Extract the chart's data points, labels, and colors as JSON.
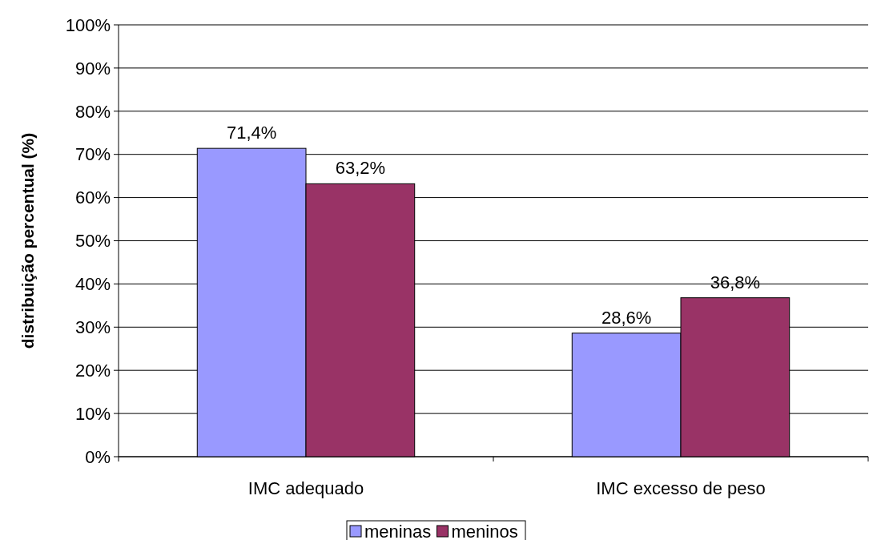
{
  "chart_data": {
    "type": "bar",
    "ylabel": "distribuição percentual (%)",
    "categories": [
      "IMC adequado",
      "IMC excesso de peso"
    ],
    "series": [
      {
        "name": "meninas",
        "color": "#9999ff",
        "values": [
          71.4,
          28.6
        ],
        "value_labels": [
          "71,4%",
          "28,6%"
        ]
      },
      {
        "name": "meninos",
        "color": "#993366",
        "values": [
          63.2,
          36.8
        ],
        "value_labels": [
          "63,2%",
          "36,8%"
        ]
      }
    ],
    "ylim": [
      0,
      100
    ],
    "yticks": [
      {
        "value": 0,
        "label": "0%"
      },
      {
        "value": 10,
        "label": "10%"
      },
      {
        "value": 20,
        "label": "20%"
      },
      {
        "value": 30,
        "label": "30%"
      },
      {
        "value": 40,
        "label": "40%"
      },
      {
        "value": 50,
        "label": "50%"
      },
      {
        "value": 60,
        "label": "60%"
      },
      {
        "value": 70,
        "label": "70%"
      },
      {
        "value": 80,
        "label": "80%"
      },
      {
        "value": 90,
        "label": "90%"
      },
      {
        "value": 100,
        "label": "100%"
      }
    ],
    "grid": "y",
    "legend": "bottom"
  }
}
